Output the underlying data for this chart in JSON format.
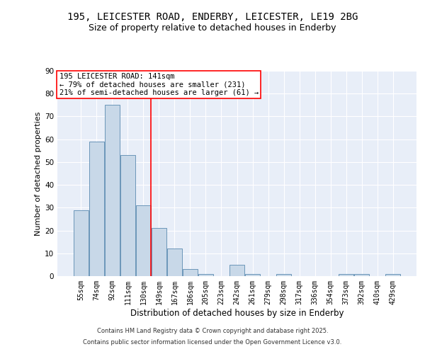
{
  "title1": "195, LEICESTER ROAD, ENDERBY, LEICESTER, LE19 2BG",
  "title2": "Size of property relative to detached houses in Enderby",
  "xlabel": "Distribution of detached houses by size in Enderby",
  "ylabel": "Number of detached properties",
  "categories": [
    "55sqm",
    "74sqm",
    "92sqm",
    "111sqm",
    "130sqm",
    "149sqm",
    "167sqm",
    "186sqm",
    "205sqm",
    "223sqm",
    "242sqm",
    "261sqm",
    "279sqm",
    "298sqm",
    "317sqm",
    "336sqm",
    "354sqm",
    "373sqm",
    "392sqm",
    "410sqm",
    "429sqm"
  ],
  "values": [
    29,
    59,
    75,
    53,
    31,
    21,
    12,
    3,
    1,
    0,
    5,
    1,
    0,
    1,
    0,
    0,
    0,
    1,
    1,
    0,
    1
  ],
  "bar_color": "#c8d8e8",
  "bar_edge_color": "#5a8ab0",
  "red_line_index": 5,
  "ylim": [
    0,
    90
  ],
  "yticks": [
    0,
    10,
    20,
    30,
    40,
    50,
    60,
    70,
    80,
    90
  ],
  "annotation_line1": "195 LEICESTER ROAD: 141sqm",
  "annotation_line2": "← 79% of detached houses are smaller (231)",
  "annotation_line3": "21% of semi-detached houses are larger (61) →",
  "background_color": "#e8eef8",
  "footer_line1": "Contains HM Land Registry data © Crown copyright and database right 2025.",
  "footer_line2": "Contains public sector information licensed under the Open Government Licence v3.0.",
  "title_fontsize": 10,
  "subtitle_fontsize": 9,
  "annotation_fontsize": 7.5,
  "tick_fontsize": 7,
  "ylabel_fontsize": 8,
  "xlabel_fontsize": 8.5
}
